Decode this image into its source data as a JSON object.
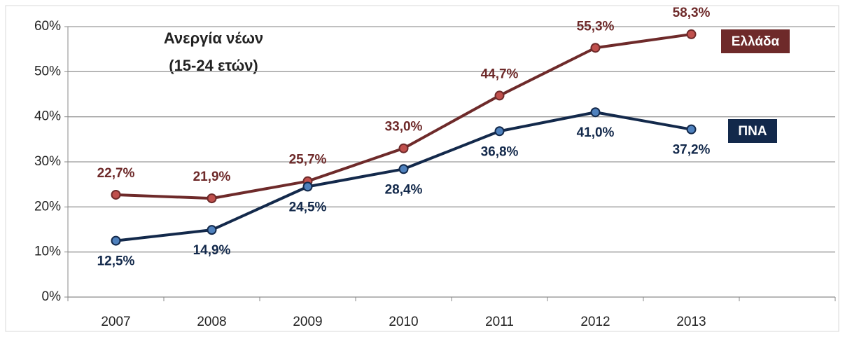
{
  "chart_data": {
    "type": "line",
    "title": "Ανεργία νέων",
    "subtitle": "(15-24 ετών)",
    "categories": [
      "2007",
      "2008",
      "2009",
      "2010",
      "2011",
      "2012",
      "2013",
      null
    ],
    "series": [
      {
        "name": "Ελλάδα",
        "color": "#6e2a2a",
        "marker_color": "#c0504d",
        "values": [
          22.7,
          21.9,
          25.7,
          33.0,
          44.7,
          55.3,
          58.3,
          null
        ],
        "value_labels": [
          "22,7%",
          "21,9%",
          "25,7%",
          "33,0%",
          "44,7%",
          "55,3%",
          "58,3%",
          null
        ]
      },
      {
        "name": "ΠΝΑ",
        "color": "#13294b",
        "marker_color": "#4f81bd",
        "values": [
          12.5,
          14.9,
          24.5,
          28.4,
          36.8,
          41.0,
          37.2,
          null
        ],
        "value_labels": [
          "12,5%",
          "14,9%",
          "24,5%",
          "28,4%",
          "36,8%",
          "41,0%",
          "37,2%",
          null
        ]
      }
    ],
    "ylim": [
      0,
      60
    ],
    "yticks": [
      {
        "value": 0,
        "label": "0%"
      },
      {
        "value": 10,
        "label": "10%"
      },
      {
        "value": 20,
        "label": "20%"
      },
      {
        "value": 30,
        "label": "30%"
      },
      {
        "value": 40,
        "label": "40%"
      },
      {
        "value": 50,
        "label": "50%"
      },
      {
        "value": 60,
        "label": "60%"
      }
    ],
    "grid": true
  }
}
